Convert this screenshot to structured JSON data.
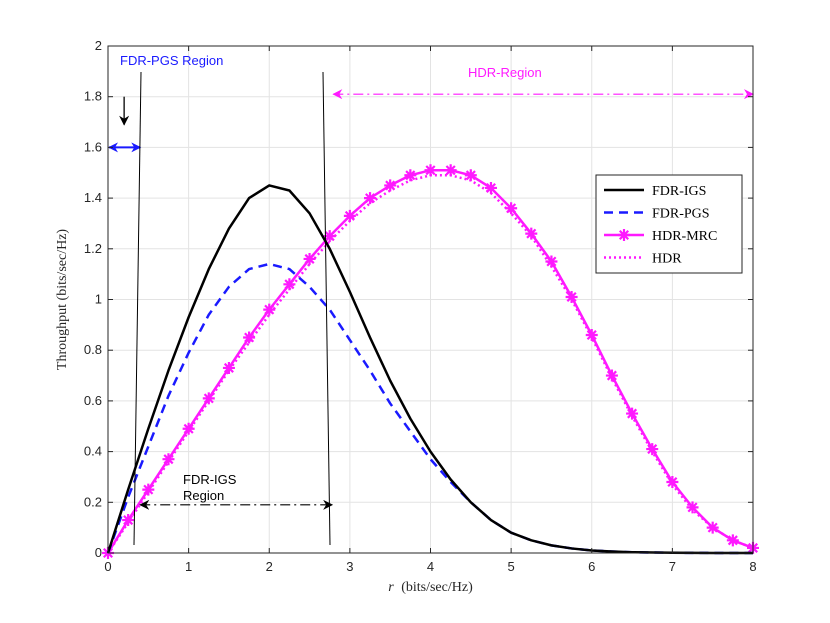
{
  "chart_data": {
    "type": "line",
    "xlabel_var": "r",
    "xlabel_units": "(bits/sec/Hz)",
    "ylabel": "Throughput (bits/sec/Hz)",
    "xlim": [
      0,
      8
    ],
    "ylim": [
      0,
      2
    ],
    "xticks": [
      0,
      1,
      2,
      3,
      4,
      5,
      6,
      7,
      8
    ],
    "yticks": [
      0,
      0.2,
      0.4,
      0.6,
      0.8,
      1,
      1.2,
      1.4,
      1.6,
      1.8,
      2
    ],
    "ytick_labels": [
      "0",
      "0.2",
      "0.4",
      "0.6",
      "0.8",
      "1",
      "1.2",
      "1.4",
      "1.6",
      "1.8",
      "2"
    ],
    "grid": true,
    "legend_position": "right",
    "series": [
      {
        "name": "FDR-IGS",
        "color": "#000000",
        "style": "solid",
        "x": [
          0,
          0.25,
          0.5,
          0.75,
          1.0,
          1.25,
          1.5,
          1.75,
          2.0,
          2.25,
          2.5,
          2.75,
          3.0,
          3.25,
          3.5,
          3.75,
          4.0,
          4.25,
          4.5,
          4.75,
          5.0,
          5.25,
          5.5,
          5.75,
          6.0,
          6.25,
          6.5,
          6.75,
          7.0,
          7.25,
          7.5,
          7.75,
          8.0
        ],
        "y": [
          0,
          0.25,
          0.49,
          0.72,
          0.93,
          1.12,
          1.28,
          1.4,
          1.45,
          1.43,
          1.34,
          1.2,
          1.03,
          0.85,
          0.68,
          0.53,
          0.4,
          0.29,
          0.2,
          0.13,
          0.08,
          0.05,
          0.03,
          0.018,
          0.01,
          0.006,
          0.003,
          0.002,
          0.001,
          0.0005,
          0.0002,
          0.0001,
          0
        ]
      },
      {
        "name": "FDR-PGS",
        "color": "#1a1aff",
        "style": "dashed",
        "x": [
          0,
          0.25,
          0.5,
          0.75,
          1.0,
          1.25,
          1.5,
          1.75,
          2.0,
          2.25,
          2.5,
          2.75,
          3.0,
          3.25,
          3.5,
          3.75,
          4.0,
          4.25,
          4.5,
          4.75,
          5.0,
          5.25,
          5.5,
          5.75,
          6.0,
          6.25,
          6.5,
          6.75,
          7.0,
          7.25,
          7.5,
          7.75,
          8.0
        ],
        "y": [
          0,
          0.22,
          0.42,
          0.62,
          0.79,
          0.94,
          1.05,
          1.12,
          1.14,
          1.12,
          1.05,
          0.96,
          0.84,
          0.72,
          0.59,
          0.48,
          0.37,
          0.28,
          0.2,
          0.13,
          0.08,
          0.05,
          0.03,
          0.018,
          0.01,
          0.006,
          0.003,
          0.002,
          0.001,
          0.0005,
          0.0002,
          0.0001,
          0
        ]
      },
      {
        "name": "HDR-MRC",
        "color": "#ff19ff",
        "style": "solid-star",
        "x": [
          0,
          0.25,
          0.5,
          0.75,
          1.0,
          1.25,
          1.5,
          1.75,
          2.0,
          2.25,
          2.5,
          2.75,
          3.0,
          3.25,
          3.5,
          3.75,
          4.0,
          4.25,
          4.5,
          4.75,
          5.0,
          5.25,
          5.5,
          5.75,
          6.0,
          6.25,
          6.5,
          6.75,
          7.0,
          7.25,
          7.5,
          7.75,
          8.0
        ],
        "y": [
          0,
          0.13,
          0.25,
          0.37,
          0.49,
          0.61,
          0.73,
          0.85,
          0.96,
          1.06,
          1.16,
          1.25,
          1.33,
          1.4,
          1.45,
          1.49,
          1.51,
          1.51,
          1.49,
          1.44,
          1.36,
          1.26,
          1.15,
          1.01,
          0.86,
          0.7,
          0.55,
          0.41,
          0.28,
          0.18,
          0.1,
          0.05,
          0.02
        ]
      },
      {
        "name": "HDR",
        "color": "#ff19ff",
        "style": "dotted",
        "x": [
          0,
          0.25,
          0.5,
          0.75,
          1.0,
          1.25,
          1.5,
          1.75,
          2.0,
          2.25,
          2.5,
          2.75,
          3.0,
          3.25,
          3.5,
          3.75,
          4.0,
          4.25,
          4.5,
          4.75,
          5.0,
          5.25,
          5.5,
          5.75,
          6.0,
          6.25,
          6.5,
          6.75,
          7.0,
          7.25,
          7.5,
          7.75,
          8.0
        ],
        "y": [
          0,
          0.12,
          0.24,
          0.36,
          0.48,
          0.6,
          0.72,
          0.83,
          0.94,
          1.04,
          1.14,
          1.23,
          1.31,
          1.38,
          1.43,
          1.47,
          1.49,
          1.49,
          1.47,
          1.42,
          1.34,
          1.25,
          1.13,
          1.0,
          0.85,
          0.69,
          0.54,
          0.4,
          0.27,
          0.17,
          0.1,
          0.05,
          0.02
        ]
      }
    ],
    "annotations": {
      "fdr_pgs_region": {
        "text": "FDR-PGS Region",
        "color": "#1a1aff",
        "x_from": 0,
        "x_to": 0.4,
        "arrow_y": 1.6,
        "boundary_x": 0.4
      },
      "hdr_region": {
        "text": "HDR-Region",
        "color": "#ff19ff",
        "x_from": 2.72,
        "x_to": 8,
        "arrow_y": 1.81,
        "boundary_x": 2.72
      },
      "fdr_igs_region": {
        "text_line1": "FDR-IGS",
        "text_line2": "Region",
        "color": "#000000",
        "x_from": 0.35,
        "x_to": 2.78,
        "arrow_y": 0.19,
        "boundary_x": 0.35
      },
      "pointer_arrow": {
        "color": "#000000",
        "x": 0.2,
        "y_from": 1.8,
        "y_to": 1.65
      }
    }
  }
}
